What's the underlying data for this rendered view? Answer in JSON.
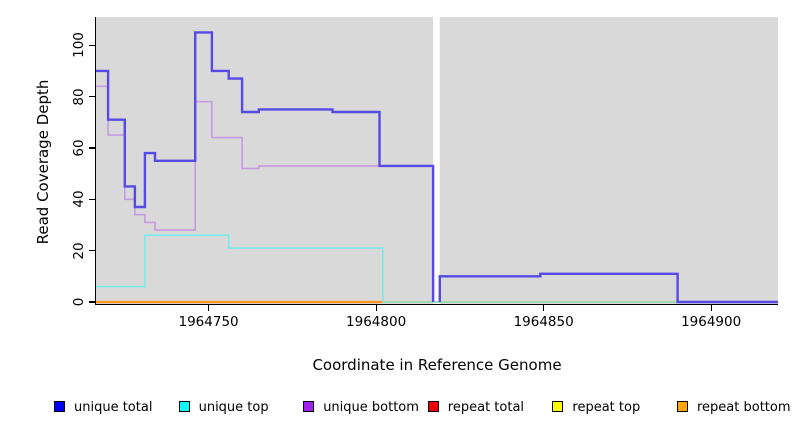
{
  "figure": {
    "background_color": "#ffffff",
    "plot_background_color": "#d9d9d9",
    "gap_region": {
      "from": 1964817,
      "to": 1964819,
      "appearance": "white vertical stripe, no plot background"
    }
  },
  "chart_data": {
    "type": "line",
    "subtype": "step-coverage",
    "title": "",
    "xlabel": "Coordinate in Reference Genome",
    "ylabel": "Read Coverage Depth",
    "xlim": [
      1964716,
      1964920
    ],
    "ylim": [
      0,
      111
    ],
    "x_ticks": [
      1964750,
      1964800,
      1964850,
      1964900
    ],
    "y_ticks": [
      0,
      20,
      40,
      60,
      80,
      100
    ],
    "grid": "off",
    "legend_position": "bottom",
    "series": [
      {
        "name": "unique total",
        "legend_color": "#0000ff",
        "line_color": "#554ae6",
        "line_width": 2.4,
        "draw": true,
        "segments": [
          [
            [
              1964716,
              90
            ],
            [
              1964720,
              71
            ],
            [
              1964725,
              45
            ],
            [
              1964728,
              37
            ],
            [
              1964731,
              58
            ],
            [
              1964734,
              55
            ],
            [
              1964746,
              105
            ],
            [
              1964751,
              90
            ],
            [
              1964756,
              87
            ],
            [
              1964760,
              74
            ],
            [
              1964765,
              75
            ],
            [
              1964787,
              74
            ],
            [
              1964801,
              53
            ],
            [
              1964817,
              0
            ]
          ],
          [
            [
              1964819,
              0
            ],
            [
              1964819,
              10
            ],
            [
              1964849,
              11
            ],
            [
              1964890,
              0
            ],
            [
              1964920,
              0
            ]
          ]
        ]
      },
      {
        "name": "unique top",
        "legend_color": "#00ffff",
        "line_color": "#7ce9eb",
        "line_width": 1.6,
        "draw": true,
        "segments": [
          [
            [
              1964716,
              6
            ],
            [
              1964731,
              26
            ],
            [
              1964756,
              21
            ],
            [
              1964802,
              0
            ],
            [
              1964920,
              0
            ]
          ]
        ]
      },
      {
        "name": "unique bottom",
        "legend_color": "#a020f0",
        "line_color": "#c69ae2",
        "line_width": 1.6,
        "draw": true,
        "segments": [
          [
            [
              1964716,
              84
            ],
            [
              1964720,
              65
            ],
            [
              1964725,
              40
            ],
            [
              1964728,
              34
            ],
            [
              1964731,
              31
            ],
            [
              1964734,
              28
            ],
            [
              1964746,
              78
            ],
            [
              1964751,
              64
            ],
            [
              1964760,
              52
            ],
            [
              1964765,
              53
            ],
            [
              1964817,
              0
            ]
          ]
        ]
      },
      {
        "name": "repeat total",
        "legend_color": "#ee0000",
        "line_color": "#ee0000",
        "line_width": 1.6,
        "draw": false,
        "note": "at 0, hidden under repeat bottom line",
        "segments": [
          [
            [
              1964716,
              0
            ],
            [
              1964802,
              0
            ]
          ]
        ]
      },
      {
        "name": "repeat top",
        "legend_color": "#ffff00",
        "line_color": "#ffff00",
        "line_width": 1.6,
        "draw": false,
        "note": "at 0, hidden under repeat bottom line",
        "segments": [
          [
            [
              1964716,
              0
            ],
            [
              1964802,
              0
            ]
          ]
        ]
      },
      {
        "name": "repeat bottom",
        "legend_color": "#ffa500",
        "line_color": "#ff941f",
        "line_width": 2.2,
        "draw": true,
        "segments": [
          [
            [
              1964716,
              0
            ],
            [
              1964802,
              0
            ]
          ]
        ]
      }
    ],
    "zero_overlap_segment": {
      "from": 1964802,
      "to": 1964920,
      "value": 0,
      "color": "#9fd49f",
      "meaning": "pale green line where overlapping semi-transparent zero-depth lines blend after 1964802"
    }
  },
  "legend": {
    "items": [
      {
        "label": "unique total",
        "color": "#0000ff"
      },
      {
        "label": "unique top",
        "color": "#00ffff"
      },
      {
        "label": "unique bottom",
        "color": "#a020f0"
      },
      {
        "label": "repeat total",
        "color": "#ee0000"
      },
      {
        "label": "repeat top",
        "color": "#ffff00"
      },
      {
        "label": "repeat bottom",
        "color": "#ffa500"
      }
    ]
  }
}
